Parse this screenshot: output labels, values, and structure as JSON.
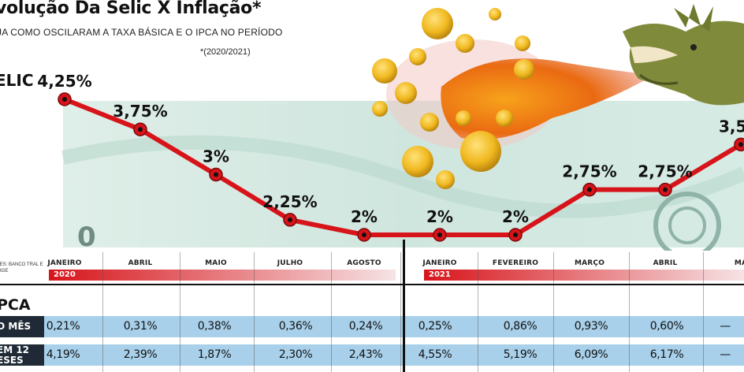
{
  "header": {
    "title": "volução Da Selic X Inflação*",
    "subtitle": "JA COMO OSCILARAM A TAXA BÁSICA E O IPCA NO PERÍODO",
    "period_note": "*(2020/2021)"
  },
  "labels": {
    "selic": "ELIC",
    "ipca": "PCA",
    "sources": "TES: BANCO TRAL E IBGE",
    "row_month": "O MÊS",
    "row_12": "EM 12 ESES"
  },
  "colors": {
    "line": "#d7141a",
    "band": "#a8d0ea",
    "year_bar_start": "#d7141a",
    "year_bar_end": "#f3d9dc"
  },
  "chart_data": {
    "type": "line",
    "title": "",
    "series": [
      {
        "name": "",
        "values": [
          4.25,
          3.75,
          3,
          2.25,
          2,
          2,
          2,
          2.75,
          2.75,
          3.5
        ]
      }
    ],
    "categories": [
      "JANEIRO",
      "ABRIL",
      "MAIO",
      "JULHO",
      "AGOSTO",
      "JANEIRO",
      "FEVEREIRO",
      "MARÇO",
      "ABRIL",
      "MA"
    ],
    "point_labels": [
      "4,25%",
      "3,75%",
      "3%",
      "2,25%",
      "2%",
      "2%",
      "2%",
      "2,75%",
      "2,75%",
      "3,5"
    ],
    "years": [
      "2020",
      "2021"
    ],
    "ylim": [
      2,
      4.25
    ],
    "grid": false,
    "xlabel": "",
    "ylabel": ""
  },
  "ipca": {
    "month": [
      "0,21%",
      "0,31%",
      "0,38%",
      "0,36%",
      "0,24%",
      "0,25%",
      "0,86%",
      "0,93%",
      "0,60%",
      "—"
    ],
    "twelve": [
      "4,19%",
      "2,39%",
      "1,87%",
      "2,30%",
      "2,43%",
      "4,55%",
      "5,19%",
      "6,09%",
      "6,17%",
      "—"
    ]
  }
}
